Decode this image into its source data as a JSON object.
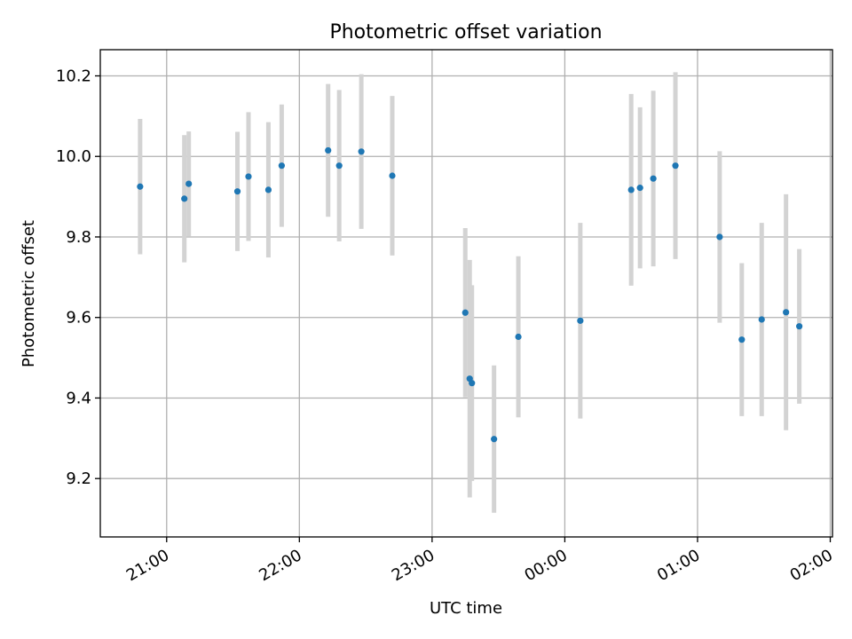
{
  "chart_data": {
    "type": "scatter",
    "title": "Photometric offset variation",
    "xlabel": "UTC time",
    "ylabel": "Photometric offset",
    "x_ticks": [
      "21:00",
      "22:00",
      "23:00",
      "00:00",
      "01:00",
      "02:00"
    ],
    "y_ticks": [
      "9.2",
      "9.4",
      "9.6",
      "9.8",
      "10.0",
      "10.2"
    ],
    "xlim_minutes_after_2030": [
      0,
      331
    ],
    "ylim": [
      9.055,
      10.265
    ],
    "grid": true,
    "point_color": "#1f77b4",
    "errorbar_color": "#d3d3d3",
    "points": [
      {
        "time": "20:48",
        "y": 9.925,
        "err": 0.168
      },
      {
        "time": "21:08",
        "y": 9.895,
        "err": 0.158
      },
      {
        "time": "21:10",
        "y": 9.932,
        "err": 0.13
      },
      {
        "time": "21:32",
        "y": 9.913,
        "err": 0.148
      },
      {
        "time": "21:37",
        "y": 9.95,
        "err": 0.16
      },
      {
        "time": "21:46",
        "y": 9.917,
        "err": 0.168
      },
      {
        "time": "21:52",
        "y": 9.977,
        "err": 0.152
      },
      {
        "time": "22:13",
        "y": 10.015,
        "err": 0.165
      },
      {
        "time": "22:18",
        "y": 9.977,
        "err": 0.188
      },
      {
        "time": "22:28",
        "y": 10.012,
        "err": 0.192
      },
      {
        "time": "22:42",
        "y": 9.952,
        "err": 0.198
      },
      {
        "time": "23:15",
        "y": 9.612,
        "err": 0.21
      },
      {
        "time": "23:17",
        "y": 9.448,
        "err": 0.295
      },
      {
        "time": "23:18",
        "y": 9.437,
        "err": 0.243
      },
      {
        "time": "23:28",
        "y": 9.298,
        "err": 0.183
      },
      {
        "time": "23:39",
        "y": 9.552,
        "err": 0.2
      },
      {
        "time": "00:07",
        "y": 9.592,
        "err": 0.243
      },
      {
        "time": "00:30",
        "y": 9.917,
        "err": 0.238
      },
      {
        "time": "00:34",
        "y": 9.922,
        "err": 0.2
      },
      {
        "time": "00:40",
        "y": 9.945,
        "err": 0.218
      },
      {
        "time": "00:50",
        "y": 9.977,
        "err": 0.232
      },
      {
        "time": "01:10",
        "y": 9.8,
        "err": 0.213
      },
      {
        "time": "01:20",
        "y": 9.545,
        "err": 0.19
      },
      {
        "time": "01:29",
        "y": 9.595,
        "err": 0.24
      },
      {
        "time": "01:40",
        "y": 9.613,
        "err": 0.293
      },
      {
        "time": "01:46",
        "y": 9.578,
        "err": 0.192
      }
    ]
  }
}
